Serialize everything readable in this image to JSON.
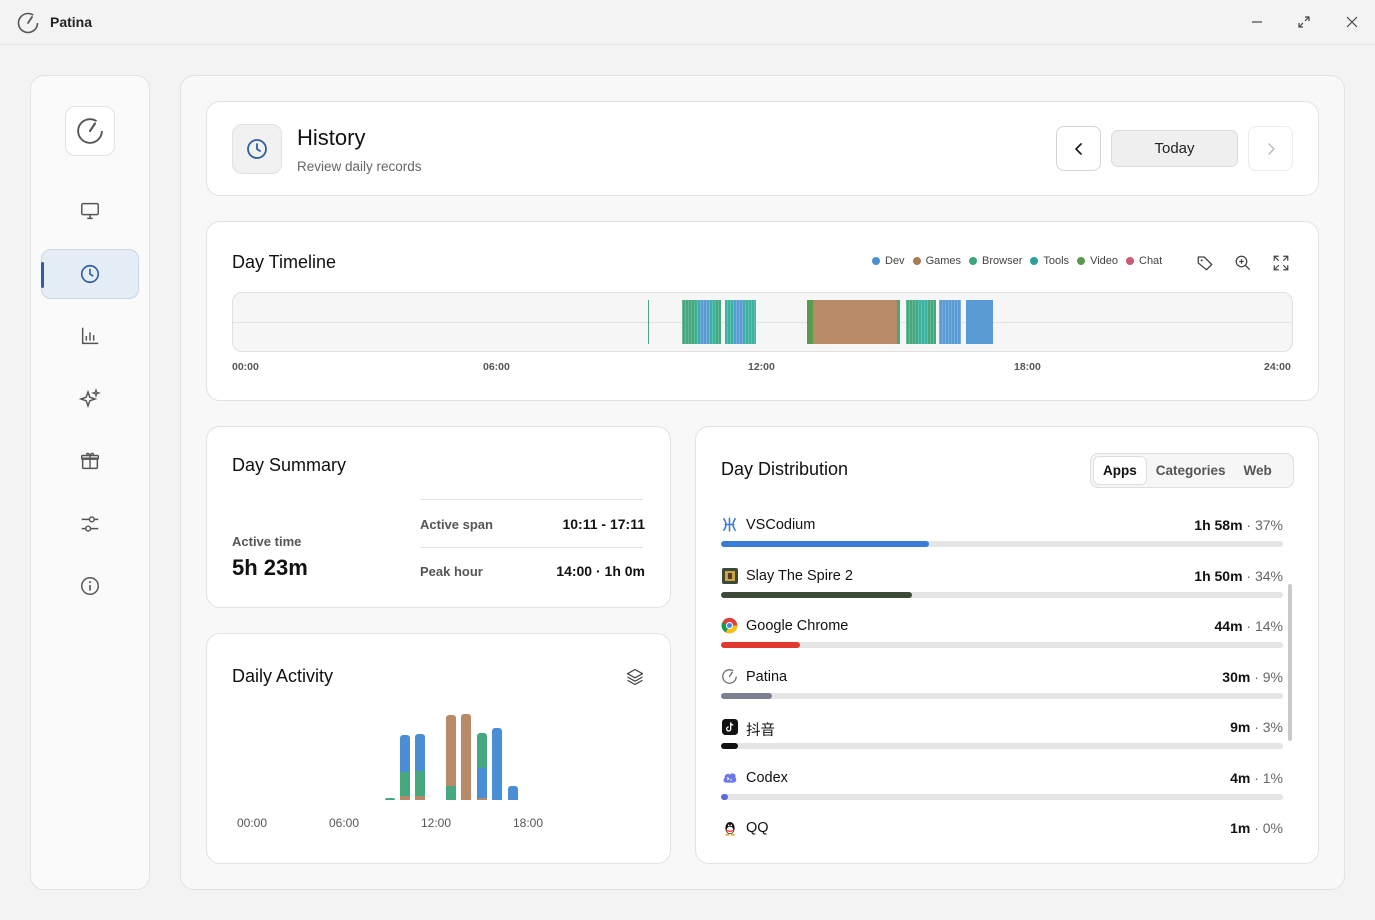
{
  "app": {
    "title": "Patina"
  },
  "window_controls": [
    "minimize",
    "maximize",
    "close"
  ],
  "sidebar": {
    "items": [
      {
        "icon": "monitor-icon",
        "active": false
      },
      {
        "icon": "clock-icon",
        "active": true
      },
      {
        "icon": "bar-chart-icon",
        "active": false
      },
      {
        "icon": "sparkles-icon",
        "active": false
      },
      {
        "icon": "gift-box-icon",
        "active": false
      },
      {
        "icon": "sliders-icon",
        "active": false
      },
      {
        "icon": "info-icon",
        "active": false
      }
    ]
  },
  "header": {
    "title": "History",
    "subtitle": "Review daily records",
    "today_label": "Today"
  },
  "timeline": {
    "title": "Day Timeline",
    "legend": [
      {
        "label": "Dev",
        "color": "#4a8fd6"
      },
      {
        "label": "Games",
        "color": "#a97b55"
      },
      {
        "label": "Browser",
        "color": "#3ba77a"
      },
      {
        "label": "Tools",
        "color": "#2aa198"
      },
      {
        "label": "Video",
        "color": "#5a9a4e"
      },
      {
        "label": "Chat",
        "color": "#cf5874"
      }
    ],
    "ticks": [
      "00:00",
      "06:00",
      "12:00",
      "18:00",
      "24:00"
    ],
    "colors": {
      "dev": "#5b9bd5",
      "games": "#b88a68",
      "browser": "#45a87f",
      "tools": "#3bb3a0",
      "video": "#5a9a4e"
    }
  },
  "summary": {
    "title": "Day Summary",
    "active_time_label": "Active time",
    "active_time_value": "5h 23m",
    "active_span_label": "Active span",
    "active_span_value": "10:11 - 17:11",
    "peak_hour_label": "Peak hour",
    "peak_hour_value": "14:00 · 1h 0m"
  },
  "activity": {
    "title": "Daily Activity",
    "ticks": [
      "00:00",
      "06:00",
      "12:00",
      "18:00"
    ]
  },
  "distribution": {
    "title": "Day Distribution",
    "tabs": [
      "Apps",
      "Categories",
      "Web"
    ],
    "active_tab": "Apps",
    "apps": [
      {
        "name": "VSCodium",
        "time": "1h 58m",
        "pct": "· 37%",
        "fraction": 0.37,
        "color": "#3a7bd5"
      },
      {
        "name": "Slay The Spire 2",
        "time": "1h 50m",
        "pct": "· 34%",
        "fraction": 0.34,
        "color": "#3c4a37"
      },
      {
        "name": "Google Chrome",
        "time": "44m",
        "pct": "· 14%",
        "fraction": 0.14,
        "color": "#e0392f"
      },
      {
        "name": "Patina",
        "time": "30m",
        "pct": "· 9%",
        "fraction": 0.09,
        "color": "#7b8190"
      },
      {
        "name": "抖音",
        "time": "9m",
        "pct": "· 3%",
        "fraction": 0.03,
        "color": "#111111"
      },
      {
        "name": "Codex",
        "time": "4m",
        "pct": "· 1%",
        "fraction": 0.01,
        "color": "#5b6bd8"
      },
      {
        "name": "QQ",
        "time": "1m",
        "pct": "· 0%",
        "fraction": 0.0,
        "color": "#888888"
      }
    ]
  }
}
